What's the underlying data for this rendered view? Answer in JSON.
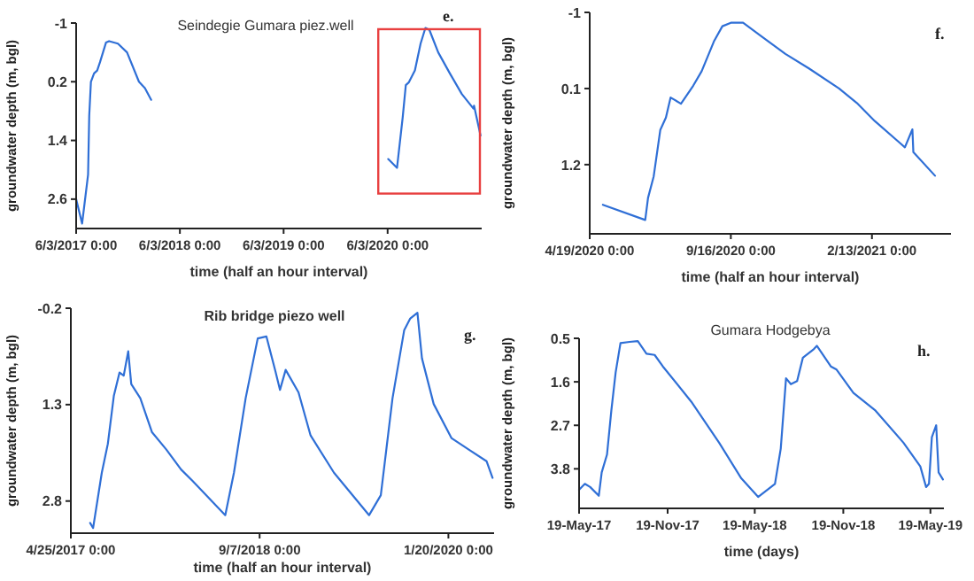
{
  "chart_data": [
    {
      "type": "line",
      "title": "Seindegie Gumara piez.well",
      "xlabel": "time (half an hour interval)",
      "ylabel": "groundwater depth (m, bgl)",
      "annotations": [
        "e."
      ],
      "xlim": [
        "2017-06-03",
        "2021-04-30"
      ],
      "xticks": [
        {
          "value": "2017-06-03",
          "label": "6/3/2017 0:00"
        },
        {
          "value": "2018-06-03",
          "label": "6/3/2018 0:00"
        },
        {
          "value": "2019-06-03",
          "label": "6/3/2019 0:00"
        },
        {
          "value": "2020-06-03",
          "label": "6/3/2020 0:00"
        }
      ],
      "ylim": [
        3.2,
        -1
      ],
      "yticks": [
        -1,
        0.2,
        1.4,
        2.6
      ],
      "series": [
        {
          "color": "#2f6fd6",
          "x": [
            "2017-06-03",
            "2017-06-24",
            "2017-07-15",
            "2017-07-19",
            "2017-07-25",
            "2017-08-05",
            "2017-08-16",
            "2017-08-26",
            "2017-09-16",
            "2017-09-27",
            "2017-10-28",
            "2017-11-29",
            "2018-01-10",
            "2018-01-31",
            "2018-02-22",
            "2019-01-01",
            "2020-06-05",
            "2020-07-06",
            "2020-07-26",
            "2020-08-06",
            "2020-08-17",
            "2020-09-07",
            "2020-09-27",
            "2020-10-14",
            "2020-10-28",
            "2020-11-28",
            "2021-01-08",
            "2021-02-19",
            "2021-04-01",
            "2021-04-03",
            "2021-04-26"
          ],
          "values": [
            2.6,
            3.1,
            2.1,
            0.9,
            0.2,
            0.03,
            -0.03,
            -0.2,
            -0.6,
            -0.63,
            -0.58,
            -0.4,
            0.2,
            0.33,
            0.57,
            null,
            1.78,
            1.96,
            0.93,
            0.27,
            0.21,
            -0.03,
            -0.58,
            -0.9,
            -0.86,
            -0.4,
            0.03,
            0.45,
            0.75,
            0.69,
            1.3
          ]
        }
      ]
    },
    {
      "type": "line",
      "xlabel": "time (half an hour interval)",
      "ylabel": "groundwater depth (m, bgl)",
      "annotations": [
        "f."
      ],
      "xlim": [
        "2020-04-19",
        "2021-05-08"
      ],
      "xticks": [
        {
          "value": "2020-04-19",
          "label": "4/19/2020 0:00"
        },
        {
          "value": "2020-09-16",
          "label": "9/16/2020 0:00"
        },
        {
          "value": "2021-02-13",
          "label": "2/13/2021 0:00"
        }
      ],
      "ylim": [
        2.2,
        -1
      ],
      "yticks": [
        -1,
        0.1,
        1.2
      ],
      "series": [
        {
          "color": "#2f6fd6",
          "x": [
            "2020-05-03",
            "2020-06-17",
            "2020-06-20",
            "2020-06-26",
            "2020-07-03",
            "2020-07-09",
            "2020-07-14",
            "2020-07-25",
            "2020-08-07",
            "2020-08-16",
            "2020-08-29",
            "2020-09-07",
            "2020-09-16",
            "2020-09-29",
            "2020-10-18",
            "2020-11-13",
            "2020-12-08",
            "2021-01-09",
            "2021-01-28",
            "2021-02-16",
            "2021-03-20",
            "2021-03-28",
            "2021-03-29",
            "2021-04-21"
          ],
          "values": [
            1.78,
            2.0,
            1.68,
            1.37,
            0.7,
            0.52,
            0.23,
            0.32,
            0.06,
            -0.15,
            -0.58,
            -0.8,
            -0.85,
            -0.85,
            -0.66,
            -0.4,
            -0.19,
            0.1,
            0.31,
            0.57,
            0.95,
            0.69,
            1.02,
            1.36
          ]
        }
      ]
    },
    {
      "type": "line",
      "title": "Rib bridge piezo well",
      "xlabel": "time (half an hour interval)",
      "ylabel": "groundwater depth (m, bgl)",
      "annotations": [
        "g."
      ],
      "xlim": [
        "2017-04-25",
        "2020-05-20"
      ],
      "xticks": [
        {
          "value": "2017-04-25",
          "label": "4/25/2017 0:00"
        },
        {
          "value": "2018-09-07",
          "label": "9/7/2018 0:00"
        },
        {
          "value": "2020-01-20",
          "label": "1/20/2020 0:00"
        }
      ],
      "ylim": [
        3.3,
        -0.2
      ],
      "yticks": [
        -0.2,
        1.3,
        2.8
      ],
      "series": [
        {
          "color": "#2f6fd6",
          "x": [
            "2017-06-15",
            "2017-06-23",
            "2017-07-16",
            "2017-08-01",
            "2017-08-17",
            "2017-09-01",
            "2017-09-12",
            "2017-09-24",
            "2017-10-02",
            "2017-10-26",
            "2017-11-26",
            "2018-01-03",
            "2018-02-11",
            "2018-03-14",
            "2018-06-08",
            "2018-07-01",
            "2018-08-01",
            "2018-09-02",
            "2018-09-25",
            "2018-10-18",
            "2018-10-31",
            "2018-11-15",
            "2018-12-19",
            "2019-01-20",
            "2019-03-23",
            "2019-06-24",
            "2019-07-25",
            "2019-08-25",
            "2019-09-25",
            "2019-10-11",
            "2019-10-30",
            "2019-11-11",
            "2019-12-12",
            "2020-01-28",
            "2020-03-14",
            "2020-04-30",
            "2020-05-16"
          ],
          "values": [
            3.14,
            3.22,
            2.36,
            1.91,
            1.16,
            0.8,
            0.85,
            0.47,
            0.98,
            1.2,
            1.73,
            2.0,
            2.31,
            2.49,
            3.02,
            2.36,
            1.2,
            0.27,
            0.24,
            0.76,
            1.07,
            0.76,
            1.11,
            1.78,
            2.36,
            3.02,
            2.71,
            1.2,
            0.14,
            -0.04,
            -0.13,
            0.58,
            1.29,
            1.82,
            2.0,
            2.18,
            2.44
          ]
        }
      ]
    },
    {
      "type": "line",
      "title": "Gumara Hodgebya",
      "xlabel": "time (days)",
      "ylabel": "groundwater depth (m, bgl)",
      "annotations": [
        "h."
      ],
      "xlim": [
        "2017-05-19",
        "2019-06-16"
      ],
      "xticks": [
        {
          "value": "2017-05-19",
          "label": "19-May-17"
        },
        {
          "value": "2017-11-19",
          "label": "19-Nov-17"
        },
        {
          "value": "2018-05-19",
          "label": "19-May-18"
        },
        {
          "value": "2018-11-19",
          "label": "19-Nov-18"
        },
        {
          "value": "2019-05-19",
          "label": "19-May-19"
        }
      ],
      "ylim": [
        4.8,
        0.5
      ],
      "yticks": [
        0.5,
        1.6,
        2.7,
        3.8
      ],
      "series": [
        {
          "color": "#2f6fd6",
          "x": [
            "2017-05-19",
            "2017-05-31",
            "2017-06-11",
            "2017-06-29",
            "2017-07-05",
            "2017-07-16",
            "2017-07-25",
            "2017-08-03",
            "2017-08-13",
            "2017-09-01",
            "2017-09-18",
            "2017-10-06",
            "2017-10-23",
            "2017-11-09",
            "2018-01-07",
            "2018-03-06",
            "2018-04-21",
            "2018-05-26",
            "2018-06-30",
            "2018-07-12",
            "2018-07-23",
            "2018-08-02",
            "2018-08-15",
            "2018-08-27",
            "2018-09-19",
            "2018-09-25",
            "2018-10-24",
            "2018-11-05",
            "2018-12-10",
            "2019-01-25",
            "2019-03-24",
            "2019-04-28",
            "2019-05-10",
            "2019-05-16",
            "2019-05-22",
            "2019-05-31",
            "2019-06-05",
            "2019-06-14"
          ],
          "values": [
            4.33,
            4.18,
            4.26,
            4.48,
            3.89,
            3.44,
            2.33,
            1.36,
            0.62,
            0.59,
            0.57,
            0.89,
            0.92,
            1.21,
            2.1,
            3.14,
            4.04,
            4.51,
            4.18,
            3.29,
            1.51,
            1.66,
            1.58,
            0.99,
            0.77,
            0.69,
            1.21,
            1.29,
            1.88,
            2.33,
            3.14,
            3.74,
            4.26,
            4.18,
            3.0,
            2.7,
            3.89,
            4.07
          ]
        }
      ]
    }
  ]
}
